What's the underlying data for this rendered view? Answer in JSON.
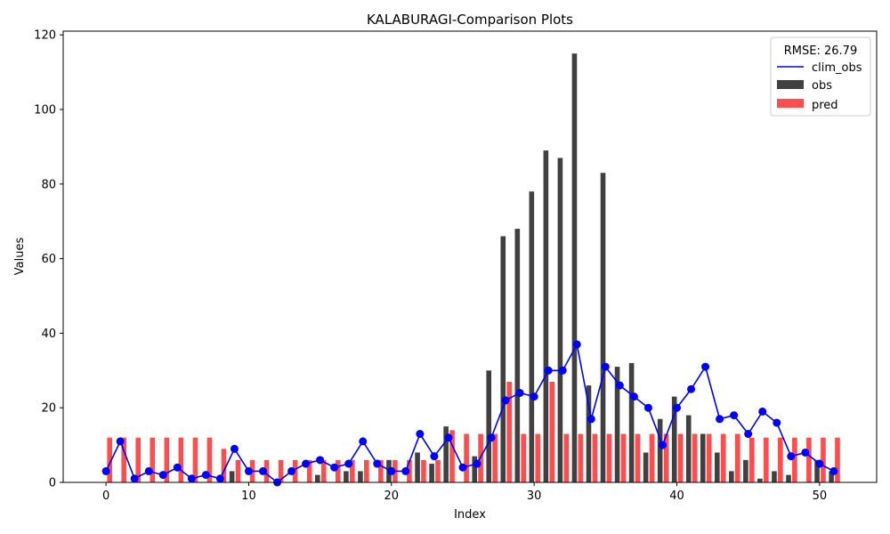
{
  "chart_data": {
    "type": "bar",
    "title": "KALABURAGI-Comparison Plots",
    "xlabel": "Index",
    "ylabel": "Values",
    "xlim": [
      -3,
      54
    ],
    "ylim": [
      0,
      121
    ],
    "xticks": [
      0,
      10,
      20,
      30,
      40,
      50
    ],
    "yticks": [
      0,
      20,
      40,
      60,
      80,
      100,
      120
    ],
    "grid": false,
    "legend": {
      "placement": "top-right",
      "title": "RMSE: 26.79",
      "entries": [
        "clim_obs",
        "obs",
        "pred"
      ]
    },
    "x": [
      0,
      1,
      2,
      3,
      4,
      5,
      6,
      7,
      8,
      9,
      10,
      11,
      12,
      13,
      14,
      15,
      16,
      17,
      18,
      19,
      20,
      21,
      22,
      23,
      24,
      25,
      26,
      27,
      28,
      29,
      30,
      31,
      32,
      33,
      34,
      35,
      36,
      37,
      38,
      39,
      40,
      41,
      42,
      43,
      44,
      45,
      46,
      47,
      48,
      49,
      50,
      51
    ],
    "series": [
      {
        "name": "clim_obs",
        "kind": "line",
        "color": "#0000ff",
        "values": [
          3,
          11,
          1,
          3,
          2,
          4,
          1,
          2,
          1,
          9,
          3,
          3,
          0,
          3,
          5,
          6,
          4,
          5,
          11,
          5,
          3,
          3,
          13,
          7,
          12,
          4,
          5,
          12,
          22,
          24,
          23,
          30,
          30,
          37,
          17,
          31,
          26,
          23,
          20,
          10,
          20,
          25,
          31,
          17,
          18,
          13,
          19,
          16,
          7,
          8,
          5,
          3
        ]
      },
      {
        "name": "obs",
        "kind": "bar",
        "color": "#404040",
        "values": [
          0,
          0,
          0,
          0,
          0,
          0,
          0,
          0,
          0,
          3,
          0,
          0,
          0,
          0,
          0,
          2,
          0,
          3,
          3,
          0,
          6,
          0,
          8,
          5,
          15,
          0,
          7,
          30,
          66,
          68,
          78,
          89,
          87,
          115,
          26,
          83,
          31,
          32,
          8,
          17,
          23,
          18,
          13,
          8,
          3,
          6,
          1,
          3,
          2,
          0,
          6,
          3
        ]
      },
      {
        "name": "pred",
        "kind": "bar",
        "color": "#ff4d4d",
        "values": [
          12,
          12,
          12,
          12,
          12,
          12,
          12,
          12,
          9,
          6,
          6,
          6,
          6,
          6,
          6,
          6,
          6,
          6,
          6,
          6,
          6,
          6,
          6,
          6,
          14,
          13,
          13,
          13,
          27,
          13,
          13,
          27,
          13,
          13,
          13,
          13,
          13,
          13,
          13,
          13,
          13,
          13,
          13,
          13,
          13,
          12,
          12,
          12,
          12,
          12,
          12,
          12
        ]
      }
    ]
  }
}
